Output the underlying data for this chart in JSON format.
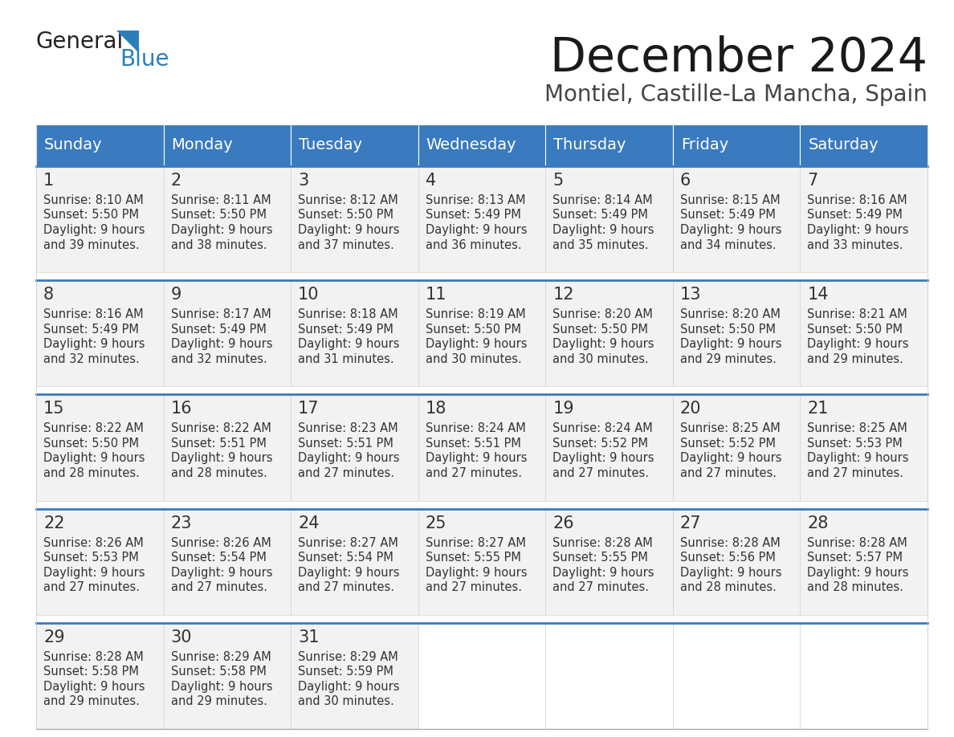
{
  "title": "December 2024",
  "subtitle": "Montiel, Castille-La Mancha, Spain",
  "header_color": "#3a7abf",
  "header_text_color": "#ffffff",
  "cell_bg_color": "#f2f2f2",
  "empty_cell_bg": "#ffffff",
  "text_color": "#333333",
  "border_color": "#3a7abf",
  "days_of_week": [
    "Sunday",
    "Monday",
    "Tuesday",
    "Wednesday",
    "Thursday",
    "Friday",
    "Saturday"
  ],
  "weeks": [
    [
      {
        "day": 1,
        "sunrise": "8:10 AM",
        "sunset": "5:50 PM",
        "daylight": "9 hours",
        "daylight2": "and 39 minutes."
      },
      {
        "day": 2,
        "sunrise": "8:11 AM",
        "sunset": "5:50 PM",
        "daylight": "9 hours",
        "daylight2": "and 38 minutes."
      },
      {
        "day": 3,
        "sunrise": "8:12 AM",
        "sunset": "5:50 PM",
        "daylight": "9 hours",
        "daylight2": "and 37 minutes."
      },
      {
        "day": 4,
        "sunrise": "8:13 AM",
        "sunset": "5:49 PM",
        "daylight": "9 hours",
        "daylight2": "and 36 minutes."
      },
      {
        "day": 5,
        "sunrise": "8:14 AM",
        "sunset": "5:49 PM",
        "daylight": "9 hours",
        "daylight2": "and 35 minutes."
      },
      {
        "day": 6,
        "sunrise": "8:15 AM",
        "sunset": "5:49 PM",
        "daylight": "9 hours",
        "daylight2": "and 34 minutes."
      },
      {
        "day": 7,
        "sunrise": "8:16 AM",
        "sunset": "5:49 PM",
        "daylight": "9 hours",
        "daylight2": "and 33 minutes."
      }
    ],
    [
      {
        "day": 8,
        "sunrise": "8:16 AM",
        "sunset": "5:49 PM",
        "daylight": "9 hours",
        "daylight2": "and 32 minutes."
      },
      {
        "day": 9,
        "sunrise": "8:17 AM",
        "sunset": "5:49 PM",
        "daylight": "9 hours",
        "daylight2": "and 32 minutes."
      },
      {
        "day": 10,
        "sunrise": "8:18 AM",
        "sunset": "5:49 PM",
        "daylight": "9 hours",
        "daylight2": "and 31 minutes."
      },
      {
        "day": 11,
        "sunrise": "8:19 AM",
        "sunset": "5:50 PM",
        "daylight": "9 hours",
        "daylight2": "and 30 minutes."
      },
      {
        "day": 12,
        "sunrise": "8:20 AM",
        "sunset": "5:50 PM",
        "daylight": "9 hours",
        "daylight2": "and 30 minutes."
      },
      {
        "day": 13,
        "sunrise": "8:20 AM",
        "sunset": "5:50 PM",
        "daylight": "9 hours",
        "daylight2": "and 29 minutes."
      },
      {
        "day": 14,
        "sunrise": "8:21 AM",
        "sunset": "5:50 PM",
        "daylight": "9 hours",
        "daylight2": "and 29 minutes."
      }
    ],
    [
      {
        "day": 15,
        "sunrise": "8:22 AM",
        "sunset": "5:50 PM",
        "daylight": "9 hours",
        "daylight2": "and 28 minutes."
      },
      {
        "day": 16,
        "sunrise": "8:22 AM",
        "sunset": "5:51 PM",
        "daylight": "9 hours",
        "daylight2": "and 28 minutes."
      },
      {
        "day": 17,
        "sunrise": "8:23 AM",
        "sunset": "5:51 PM",
        "daylight": "9 hours",
        "daylight2": "and 27 minutes."
      },
      {
        "day": 18,
        "sunrise": "8:24 AM",
        "sunset": "5:51 PM",
        "daylight": "9 hours",
        "daylight2": "and 27 minutes."
      },
      {
        "day": 19,
        "sunrise": "8:24 AM",
        "sunset": "5:52 PM",
        "daylight": "9 hours",
        "daylight2": "and 27 minutes."
      },
      {
        "day": 20,
        "sunrise": "8:25 AM",
        "sunset": "5:52 PM",
        "daylight": "9 hours",
        "daylight2": "and 27 minutes."
      },
      {
        "day": 21,
        "sunrise": "8:25 AM",
        "sunset": "5:53 PM",
        "daylight": "9 hours",
        "daylight2": "and 27 minutes."
      }
    ],
    [
      {
        "day": 22,
        "sunrise": "8:26 AM",
        "sunset": "5:53 PM",
        "daylight": "9 hours",
        "daylight2": "and 27 minutes."
      },
      {
        "day": 23,
        "sunrise": "8:26 AM",
        "sunset": "5:54 PM",
        "daylight": "9 hours",
        "daylight2": "and 27 minutes."
      },
      {
        "day": 24,
        "sunrise": "8:27 AM",
        "sunset": "5:54 PM",
        "daylight": "9 hours",
        "daylight2": "and 27 minutes."
      },
      {
        "day": 25,
        "sunrise": "8:27 AM",
        "sunset": "5:55 PM",
        "daylight": "9 hours",
        "daylight2": "and 27 minutes."
      },
      {
        "day": 26,
        "sunrise": "8:28 AM",
        "sunset": "5:55 PM",
        "daylight": "9 hours",
        "daylight2": "and 27 minutes."
      },
      {
        "day": 27,
        "sunrise": "8:28 AM",
        "sunset": "5:56 PM",
        "daylight": "9 hours",
        "daylight2": "and 28 minutes."
      },
      {
        "day": 28,
        "sunrise": "8:28 AM",
        "sunset": "5:57 PM",
        "daylight": "9 hours",
        "daylight2": "and 28 minutes."
      }
    ],
    [
      {
        "day": 29,
        "sunrise": "8:28 AM",
        "sunset": "5:58 PM",
        "daylight": "9 hours",
        "daylight2": "and 29 minutes."
      },
      {
        "day": 30,
        "sunrise": "8:29 AM",
        "sunset": "5:58 PM",
        "daylight": "9 hours",
        "daylight2": "and 29 minutes."
      },
      {
        "day": 31,
        "sunrise": "8:29 AM",
        "sunset": "5:59 PM",
        "daylight": "9 hours",
        "daylight2": "and 30 minutes."
      },
      null,
      null,
      null,
      null
    ]
  ]
}
